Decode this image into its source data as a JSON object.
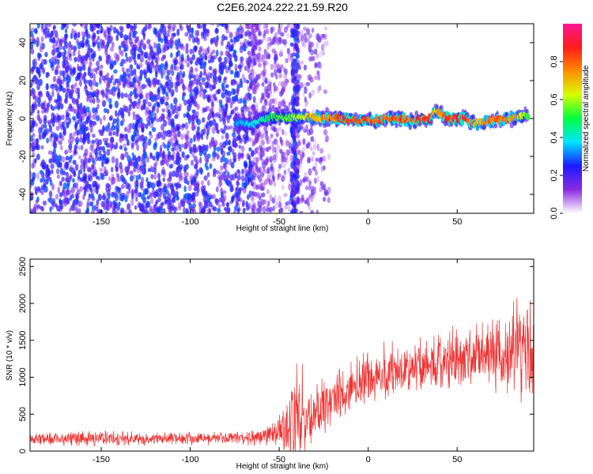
{
  "figure": {
    "title": "C2E6.2024.222.21.59.R20"
  },
  "colormap": {
    "stops": [
      "#ffffff",
      "#8a2be2",
      "#1a1aff",
      "#00e5ff",
      "#00ff40",
      "#d8ff00",
      "#ff8c00",
      "#ff1a1a",
      "#ff1493"
    ]
  },
  "chart_data": [
    {
      "type": "heatmap",
      "title": "C2E6.2024.222.21.59.R20",
      "xlabel": "Height of straight line (km)",
      "ylabel": "Frequency (Hz)",
      "xlim": [
        -190,
        93
      ],
      "ylim": [
        -50,
        50
      ],
      "xticks": [
        -150,
        -100,
        -50,
        0,
        50
      ],
      "xtick_labels": [
        "-150",
        "-100",
        "-50",
        "0",
        "50"
      ],
      "yticks": [
        -40,
        -20,
        0,
        20,
        40
      ],
      "ytick_labels": [
        "-40",
        "-20",
        "0",
        "20",
        "40"
      ],
      "colorbar": {
        "label": "Normalized spectral amplitude",
        "range": [
          0,
          1
        ],
        "ticks": [
          0,
          0.2,
          0.4,
          0.6,
          0.8
        ],
        "tick_labels": [
          "0.0",
          "0.2",
          "0.4",
          "0.6",
          "0.8"
        ]
      },
      "noise_region": {
        "x": [
          -190,
          -65
        ],
        "amplitude": [
          0.1,
          0.3
        ],
        "density": "high"
      },
      "fade_region": {
        "x": [
          -65,
          -22
        ],
        "amplitude": [
          0.05,
          0.2
        ],
        "density": "medium"
      },
      "band_artifact": {
        "x": [
          -43,
          -39
        ],
        "amplitude": [
          0.1,
          0.3
        ]
      },
      "ridge": {
        "x": [
          -75,
          -65,
          -55,
          -45,
          -35,
          -25,
          -15,
          -5,
          5,
          15,
          25,
          35,
          38,
          45,
          55,
          60,
          70,
          80,
          90
        ],
        "frequency": [
          -2,
          -3,
          1,
          0,
          1,
          0,
          0,
          -1,
          -1,
          0,
          -1,
          0,
          4,
          0,
          0,
          -3,
          -1,
          0,
          2
        ],
        "amplitude": [
          0.35,
          0.4,
          0.55,
          0.6,
          0.7,
          0.8,
          0.9,
          0.9,
          0.85,
          0.9,
          0.85,
          0.9,
          0.7,
          0.9,
          0.9,
          0.75,
          0.85,
          0.8,
          0.6
        ]
      }
    },
    {
      "type": "line",
      "xlabel": "Height of straight line (km)",
      "ylabel": "SNR (10 * v/v)",
      "xlim": [
        -190,
        93
      ],
      "ylim": [
        0,
        2600
      ],
      "xticks": [
        -150,
        -100,
        -50,
        0,
        50
      ],
      "xtick_labels": [
        "-150",
        "-100",
        "-50",
        "0",
        "50"
      ],
      "yticks": [
        0,
        500,
        1000,
        1500,
        2000,
        2500
      ],
      "ytick_labels": [
        "0",
        "500",
        "1000",
        "1500",
        "2000",
        "2500"
      ],
      "color": "#ee3333",
      "series": [
        {
          "x": [
            -190,
            -170,
            -150,
            -130,
            -110,
            -90,
            -70,
            -55,
            -48,
            -42,
            -38,
            -35,
            -30,
            -25,
            -20,
            -15,
            -10,
            -5,
            0,
            10,
            20,
            30,
            40,
            50,
            60,
            70,
            80,
            90,
            93
          ],
          "center": [
            170,
            170,
            180,
            170,
            170,
            170,
            180,
            220,
            260,
            450,
            600,
            380,
            500,
            600,
            700,
            750,
            850,
            900,
            1000,
            1050,
            1100,
            1150,
            1200,
            1250,
            1300,
            1300,
            1350,
            1300,
            1350
          ],
          "spread": [
            100,
            110,
            120,
            100,
            100,
            100,
            110,
            160,
            300,
            650,
            800,
            400,
            450,
            450,
            450,
            450,
            450,
            450,
            450,
            450,
            450,
            450,
            450,
            500,
            500,
            550,
            700,
            900,
            700
          ]
        }
      ]
    }
  ]
}
